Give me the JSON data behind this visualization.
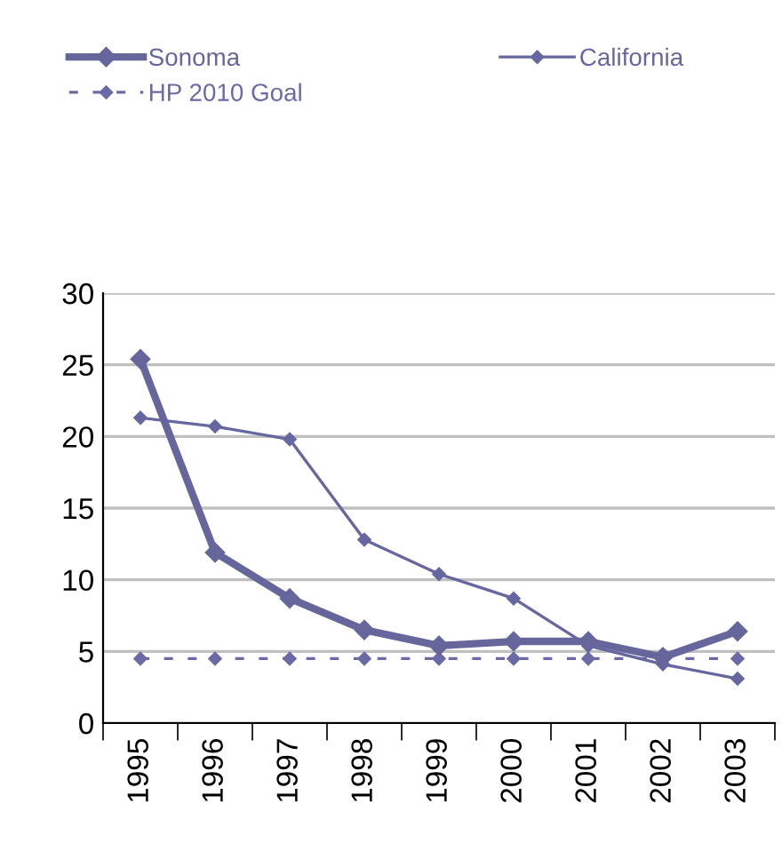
{
  "chart_data": {
    "type": "line",
    "categories": [
      "1995",
      "1996",
      "1997",
      "1998",
      "1999",
      "2000",
      "2001",
      "2002",
      "2003"
    ],
    "series": [
      {
        "name": "Sonoma",
        "color": "#66669c",
        "values": [
          25.4,
          11.9,
          8.7,
          6.5,
          5.4,
          5.7,
          5.7,
          4.6,
          6.4
        ],
        "line_style": "solid"
      },
      {
        "name": "California",
        "color": "#6666a0",
        "values": [
          21.3,
          20.7,
          19.8,
          12.8,
          10.4,
          8.7,
          5.4,
          4.1,
          3.1
        ],
        "line_style": "solid"
      },
      {
        "name": "HP 2010 Goal",
        "color": "#6a6aa6",
        "values": [
          4.5,
          4.5,
          4.5,
          4.5,
          4.5,
          4.5,
          4.5,
          4.5,
          4.5
        ],
        "line_style": "dashed"
      }
    ],
    "marker": "diamond",
    "ylim": [
      0,
      30
    ],
    "yticks": [
      0,
      5,
      10,
      15,
      20,
      25,
      30
    ],
    "grid": "y",
    "legend": "top"
  }
}
